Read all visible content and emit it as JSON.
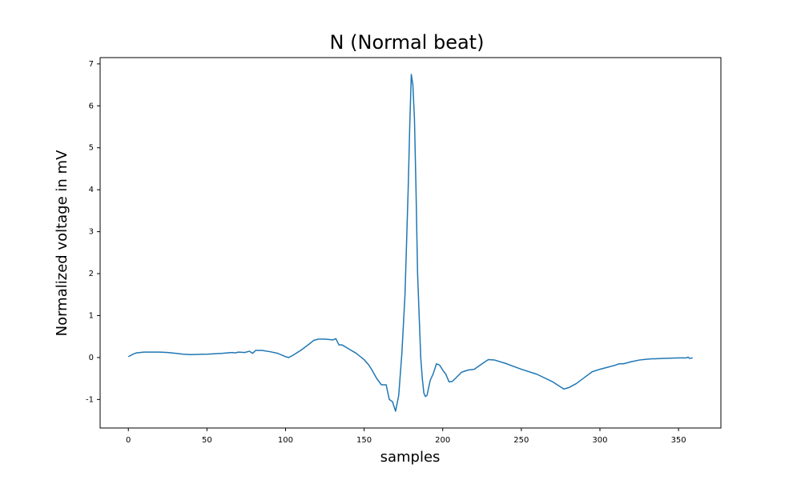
{
  "chart_data": {
    "type": "line",
    "title": "N (Normal beat)",
    "x_label": "samples",
    "y_label": "Normalized voltage in mV",
    "x": [
      0,
      3,
      5,
      10,
      15,
      20,
      25,
      30,
      35,
      40,
      50,
      60,
      66,
      68,
      70,
      74,
      77,
      79,
      81,
      85,
      90,
      95,
      100,
      102,
      105,
      110,
      115,
      118,
      121,
      125,
      130,
      132,
      134,
      136,
      140,
      145,
      150,
      153,
      155,
      158,
      161,
      164,
      166,
      168,
      170,
      172,
      174,
      176,
      178,
      179,
      180,
      181,
      182,
      183,
      184,
      186,
      187,
      188,
      189,
      190,
      192,
      194,
      196,
      198,
      200,
      202,
      204,
      206,
      208,
      212,
      216,
      220,
      225,
      229,
      233,
      240,
      250,
      260,
      270,
      277,
      280,
      285,
      290,
      295,
      300,
      305,
      310,
      312,
      315,
      320,
      325,
      330,
      333,
      335,
      340,
      350,
      355,
      356,
      357,
      359
    ],
    "series": [
      {
        "color": "#1f77b4",
        "values": [
          0.02,
          0.08,
          0.11,
          0.13,
          0.13,
          0.13,
          0.12,
          0.1,
          0.08,
          0.07,
          0.08,
          0.1,
          0.12,
          0.11,
          0.13,
          0.12,
          0.15,
          0.1,
          0.17,
          0.17,
          0.14,
          0.1,
          0.02,
          0.0,
          0.06,
          0.18,
          0.32,
          0.41,
          0.44,
          0.44,
          0.42,
          0.45,
          0.3,
          0.3,
          0.21,
          0.1,
          -0.05,
          -0.18,
          -0.3,
          -0.5,
          -0.65,
          -0.65,
          -1.0,
          -1.05,
          -1.28,
          -0.9,
          0.1,
          1.5,
          4.0,
          5.5,
          6.75,
          6.5,
          5.7,
          4.0,
          2.0,
          0.0,
          -0.5,
          -0.85,
          -0.93,
          -0.9,
          -0.55,
          -0.38,
          -0.15,
          -0.18,
          -0.3,
          -0.4,
          -0.58,
          -0.57,
          -0.5,
          -0.35,
          -0.3,
          -0.28,
          -0.15,
          -0.05,
          -0.06,
          -0.14,
          -0.28,
          -0.4,
          -0.58,
          -0.75,
          -0.72,
          -0.62,
          -0.48,
          -0.34,
          -0.28,
          -0.23,
          -0.18,
          -0.15,
          -0.15,
          -0.1,
          -0.06,
          -0.04,
          -0.03,
          -0.03,
          -0.02,
          -0.01,
          -0.01,
          0.01,
          -0.02,
          -0.01
        ]
      }
    ],
    "xlim": [
      -17.95,
      376.95
    ],
    "xticks": [
      0,
      50,
      100,
      150,
      200,
      250,
      300,
      350
    ],
    "ylim": [
      -1.68,
      7.15
    ],
    "yticks": [
      -1,
      0,
      1,
      2,
      3,
      4,
      5,
      6,
      7
    ],
    "grid": false
  }
}
